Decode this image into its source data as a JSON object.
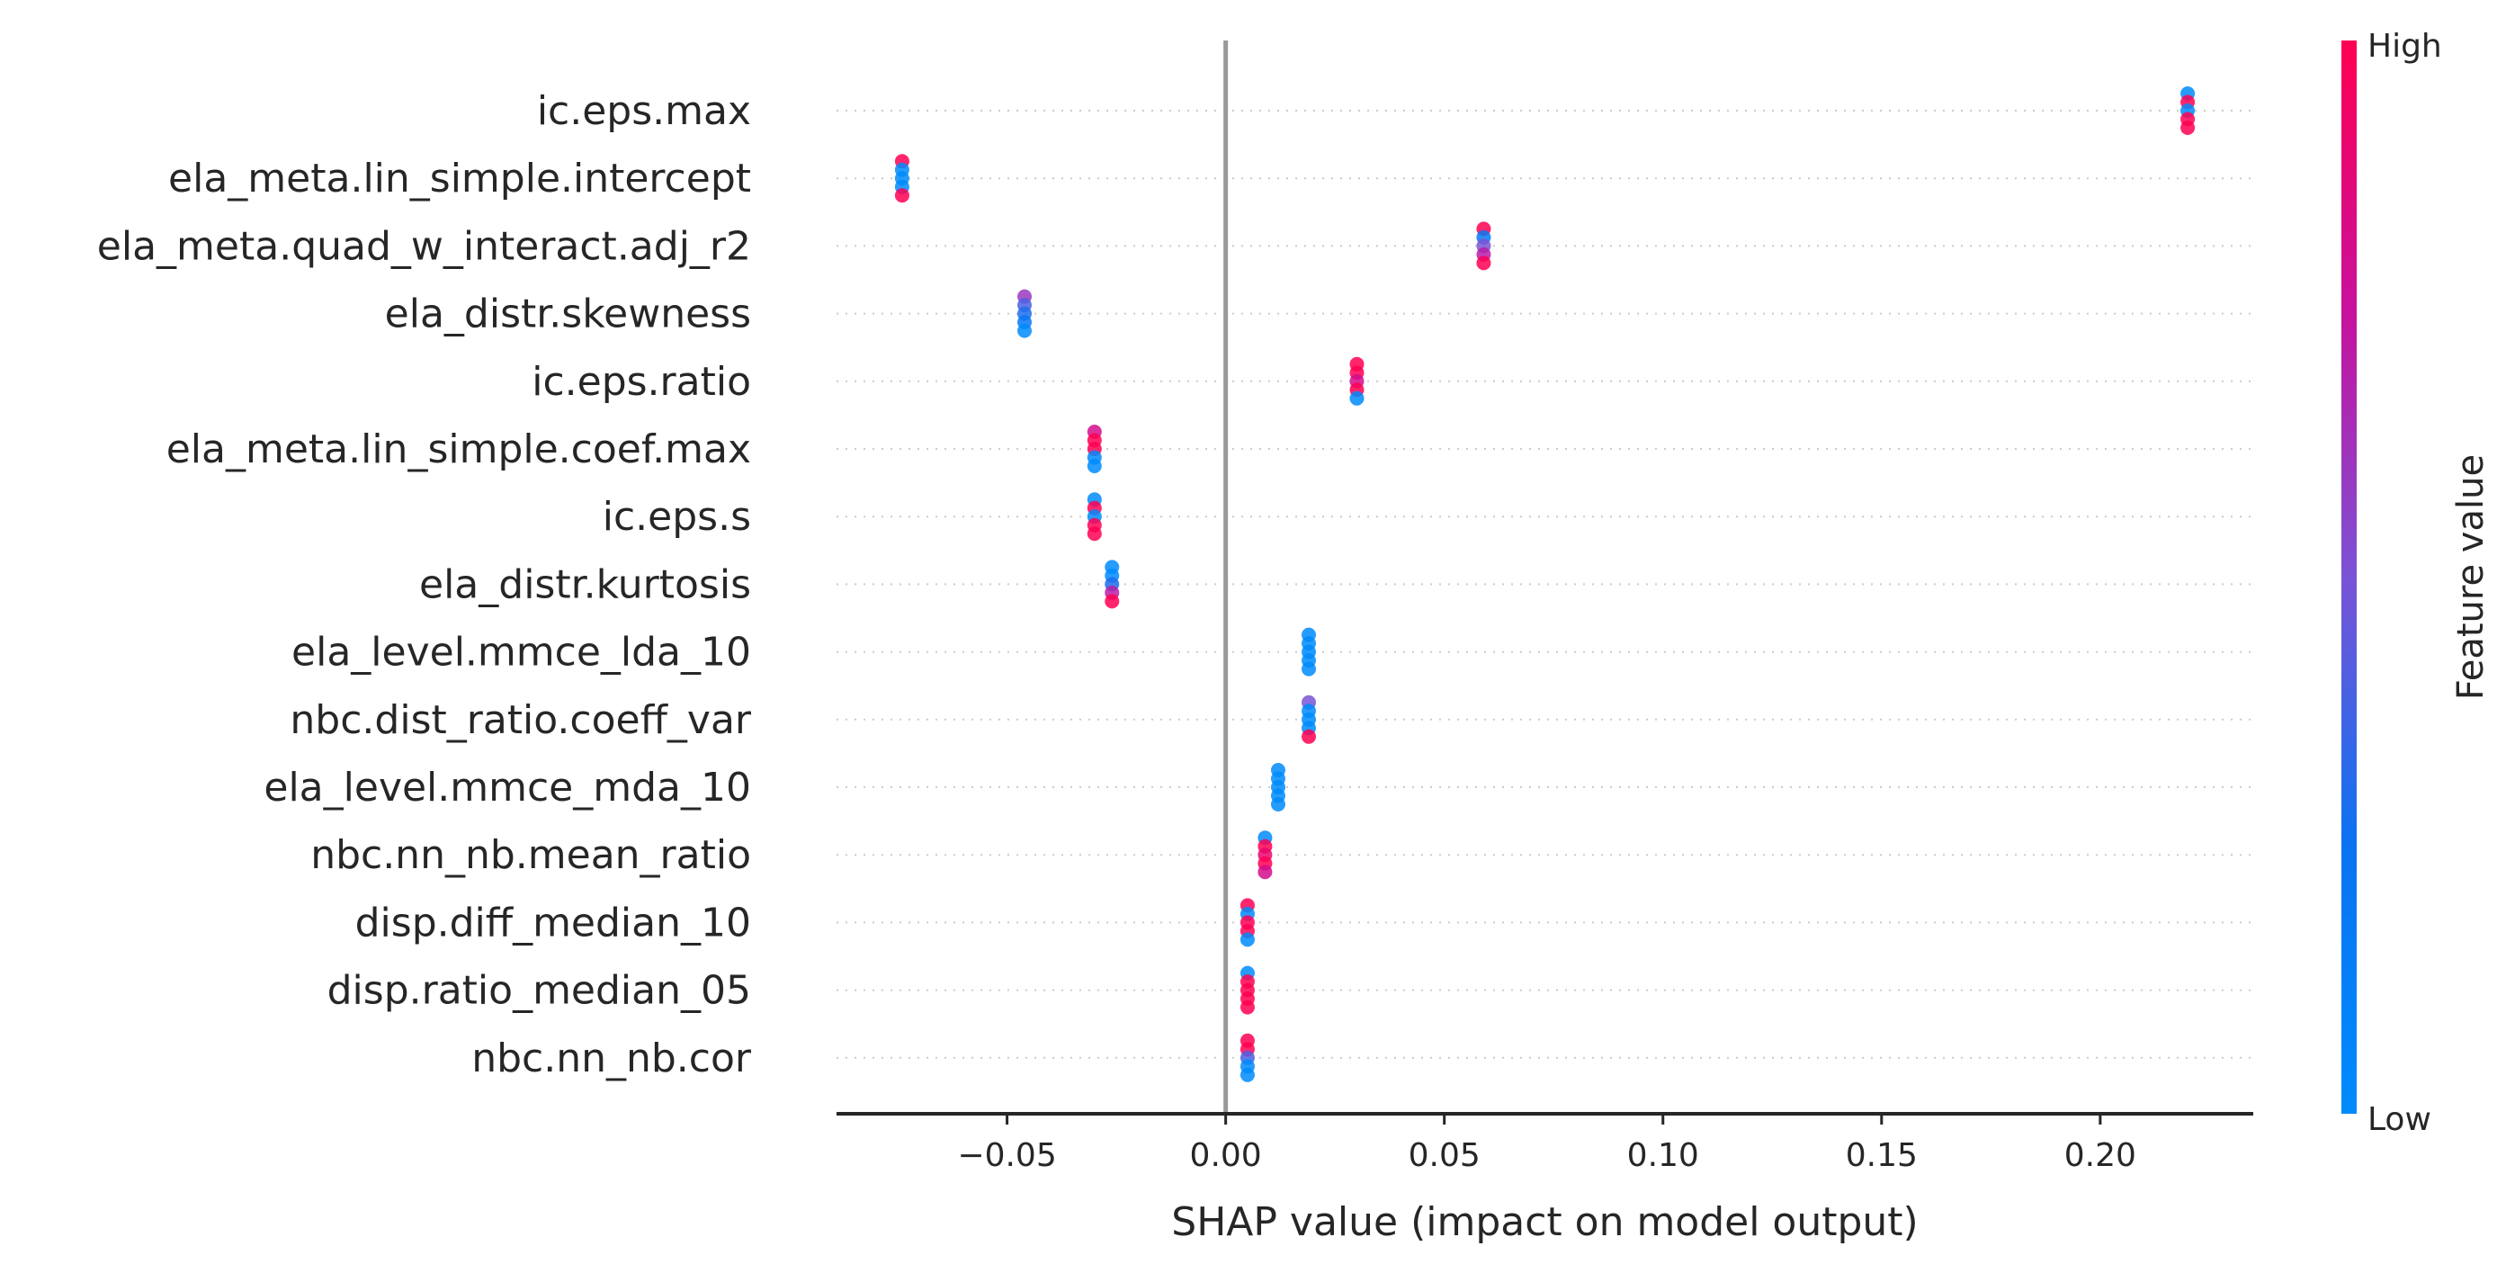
{
  "chart_data": {
    "type": "scatter",
    "subtype": "shap-beeswarm",
    "xlabel": "SHAP value (impact on model output)",
    "xlim": [
      -0.089,
      0.235
    ],
    "xticks": [
      -0.05,
      0.0,
      0.05,
      0.1,
      0.15,
      0.2
    ],
    "xtick_labels": [
      "−0.05",
      "0.00",
      "0.05",
      "0.10",
      "0.15",
      "0.20"
    ],
    "zero_line": true,
    "colorbar": {
      "title": "Feature value",
      "high_label": "High",
      "low_label": "Low",
      "low_color": "#008bfb",
      "high_color": "#ff0052"
    },
    "features": [
      {
        "name": "ic.eps.max",
        "points": [
          {
            "x": 0.22,
            "v": 0.0
          },
          {
            "x": 0.22,
            "v": 1.0
          },
          {
            "x": 0.22,
            "v": 0.0
          },
          {
            "x": 0.22,
            "v": 1.0
          },
          {
            "x": 0.22,
            "v": 1.0
          }
        ]
      },
      {
        "name": "ela_meta.lin_simple.intercept",
        "points": [
          {
            "x": -0.074,
            "v": 1.0
          },
          {
            "x": -0.074,
            "v": 0.0
          },
          {
            "x": -0.074,
            "v": 0.0
          },
          {
            "x": -0.074,
            "v": 0.0
          },
          {
            "x": -0.074,
            "v": 1.0
          }
        ]
      },
      {
        "name": "ela_meta.quad_w_interact.adj_r2",
        "points": [
          {
            "x": 0.059,
            "v": 1.0
          },
          {
            "x": 0.059,
            "v": 0.2
          },
          {
            "x": 0.059,
            "v": 0.5
          },
          {
            "x": 0.059,
            "v": 0.7
          },
          {
            "x": 0.059,
            "v": 1.0
          }
        ]
      },
      {
        "name": "ela_distr.skewness",
        "points": [
          {
            "x": -0.046,
            "v": 0.6
          },
          {
            "x": -0.046,
            "v": 0.4
          },
          {
            "x": -0.046,
            "v": 0.3
          },
          {
            "x": -0.046,
            "v": 0.2
          },
          {
            "x": -0.046,
            "v": 0.0
          }
        ]
      },
      {
        "name": "ic.eps.ratio",
        "points": [
          {
            "x": 0.03,
            "v": 1.0
          },
          {
            "x": 0.03,
            "v": 1.0
          },
          {
            "x": 0.03,
            "v": 0.8
          },
          {
            "x": 0.03,
            "v": 1.0
          },
          {
            "x": 0.03,
            "v": 0.0
          }
        ]
      },
      {
        "name": "ela_meta.lin_simple.coef.max",
        "points": [
          {
            "x": -0.03,
            "v": 0.8
          },
          {
            "x": -0.03,
            "v": 1.0
          },
          {
            "x": -0.03,
            "v": 1.0
          },
          {
            "x": -0.03,
            "v": 0.0
          },
          {
            "x": -0.03,
            "v": 0.0
          }
        ]
      },
      {
        "name": "ic.eps.s",
        "points": [
          {
            "x": -0.03,
            "v": 0.0
          },
          {
            "x": -0.03,
            "v": 1.0
          },
          {
            "x": -0.03,
            "v": 0.0
          },
          {
            "x": -0.03,
            "v": 1.0
          },
          {
            "x": -0.03,
            "v": 1.0
          }
        ]
      },
      {
        "name": "ela_distr.kurtosis",
        "points": [
          {
            "x": -0.026,
            "v": 0.0
          },
          {
            "x": -0.026,
            "v": 0.0
          },
          {
            "x": -0.026,
            "v": 0.3
          },
          {
            "x": -0.026,
            "v": 0.7
          },
          {
            "x": -0.026,
            "v": 1.0
          }
        ]
      },
      {
        "name": "ela_level.mmce_lda_10",
        "points": [
          {
            "x": 0.019,
            "v": 0.0
          },
          {
            "x": 0.019,
            "v": 0.0
          },
          {
            "x": 0.019,
            "v": 0.0
          },
          {
            "x": 0.019,
            "v": 0.0
          },
          {
            "x": 0.019,
            "v": 0.0
          }
        ]
      },
      {
        "name": "nbc.dist_ratio.coeff_var",
        "points": [
          {
            "x": 0.019,
            "v": 0.5
          },
          {
            "x": 0.019,
            "v": 0.0
          },
          {
            "x": 0.019,
            "v": 0.0
          },
          {
            "x": 0.019,
            "v": 0.0
          },
          {
            "x": 0.019,
            "v": 1.0
          }
        ]
      },
      {
        "name": "ela_level.mmce_mda_10",
        "points": [
          {
            "x": 0.012,
            "v": 0.0
          },
          {
            "x": 0.012,
            "v": 0.0
          },
          {
            "x": 0.012,
            "v": 0.0
          },
          {
            "x": 0.012,
            "v": 0.0
          },
          {
            "x": 0.012,
            "v": 0.0
          }
        ]
      },
      {
        "name": "nbc.nn_nb.mean_ratio",
        "points": [
          {
            "x": 0.009,
            "v": 0.0
          },
          {
            "x": 0.009,
            "v": 1.0
          },
          {
            "x": 0.009,
            "v": 0.9
          },
          {
            "x": 0.009,
            "v": 1.0
          },
          {
            "x": 0.009,
            "v": 0.8
          }
        ]
      },
      {
        "name": "disp.diff_median_10",
        "points": [
          {
            "x": 0.005,
            "v": 1.0
          },
          {
            "x": 0.005,
            "v": 0.0
          },
          {
            "x": 0.005,
            "v": 1.0
          },
          {
            "x": 0.005,
            "v": 1.0
          },
          {
            "x": 0.005,
            "v": 0.0
          }
        ]
      },
      {
        "name": "disp.ratio_median_05",
        "points": [
          {
            "x": 0.005,
            "v": 0.0
          },
          {
            "x": 0.005,
            "v": 1.0
          },
          {
            "x": 0.005,
            "v": 1.0
          },
          {
            "x": 0.005,
            "v": 1.0
          },
          {
            "x": 0.005,
            "v": 1.0
          }
        ]
      },
      {
        "name": "nbc.nn_nb.cor",
        "points": [
          {
            "x": 0.005,
            "v": 1.0
          },
          {
            "x": 0.005,
            "v": 1.0
          },
          {
            "x": 0.005,
            "v": 0.4
          },
          {
            "x": 0.005,
            "v": 0.0
          },
          {
            "x": 0.005,
            "v": 0.0
          }
        ]
      }
    ]
  }
}
